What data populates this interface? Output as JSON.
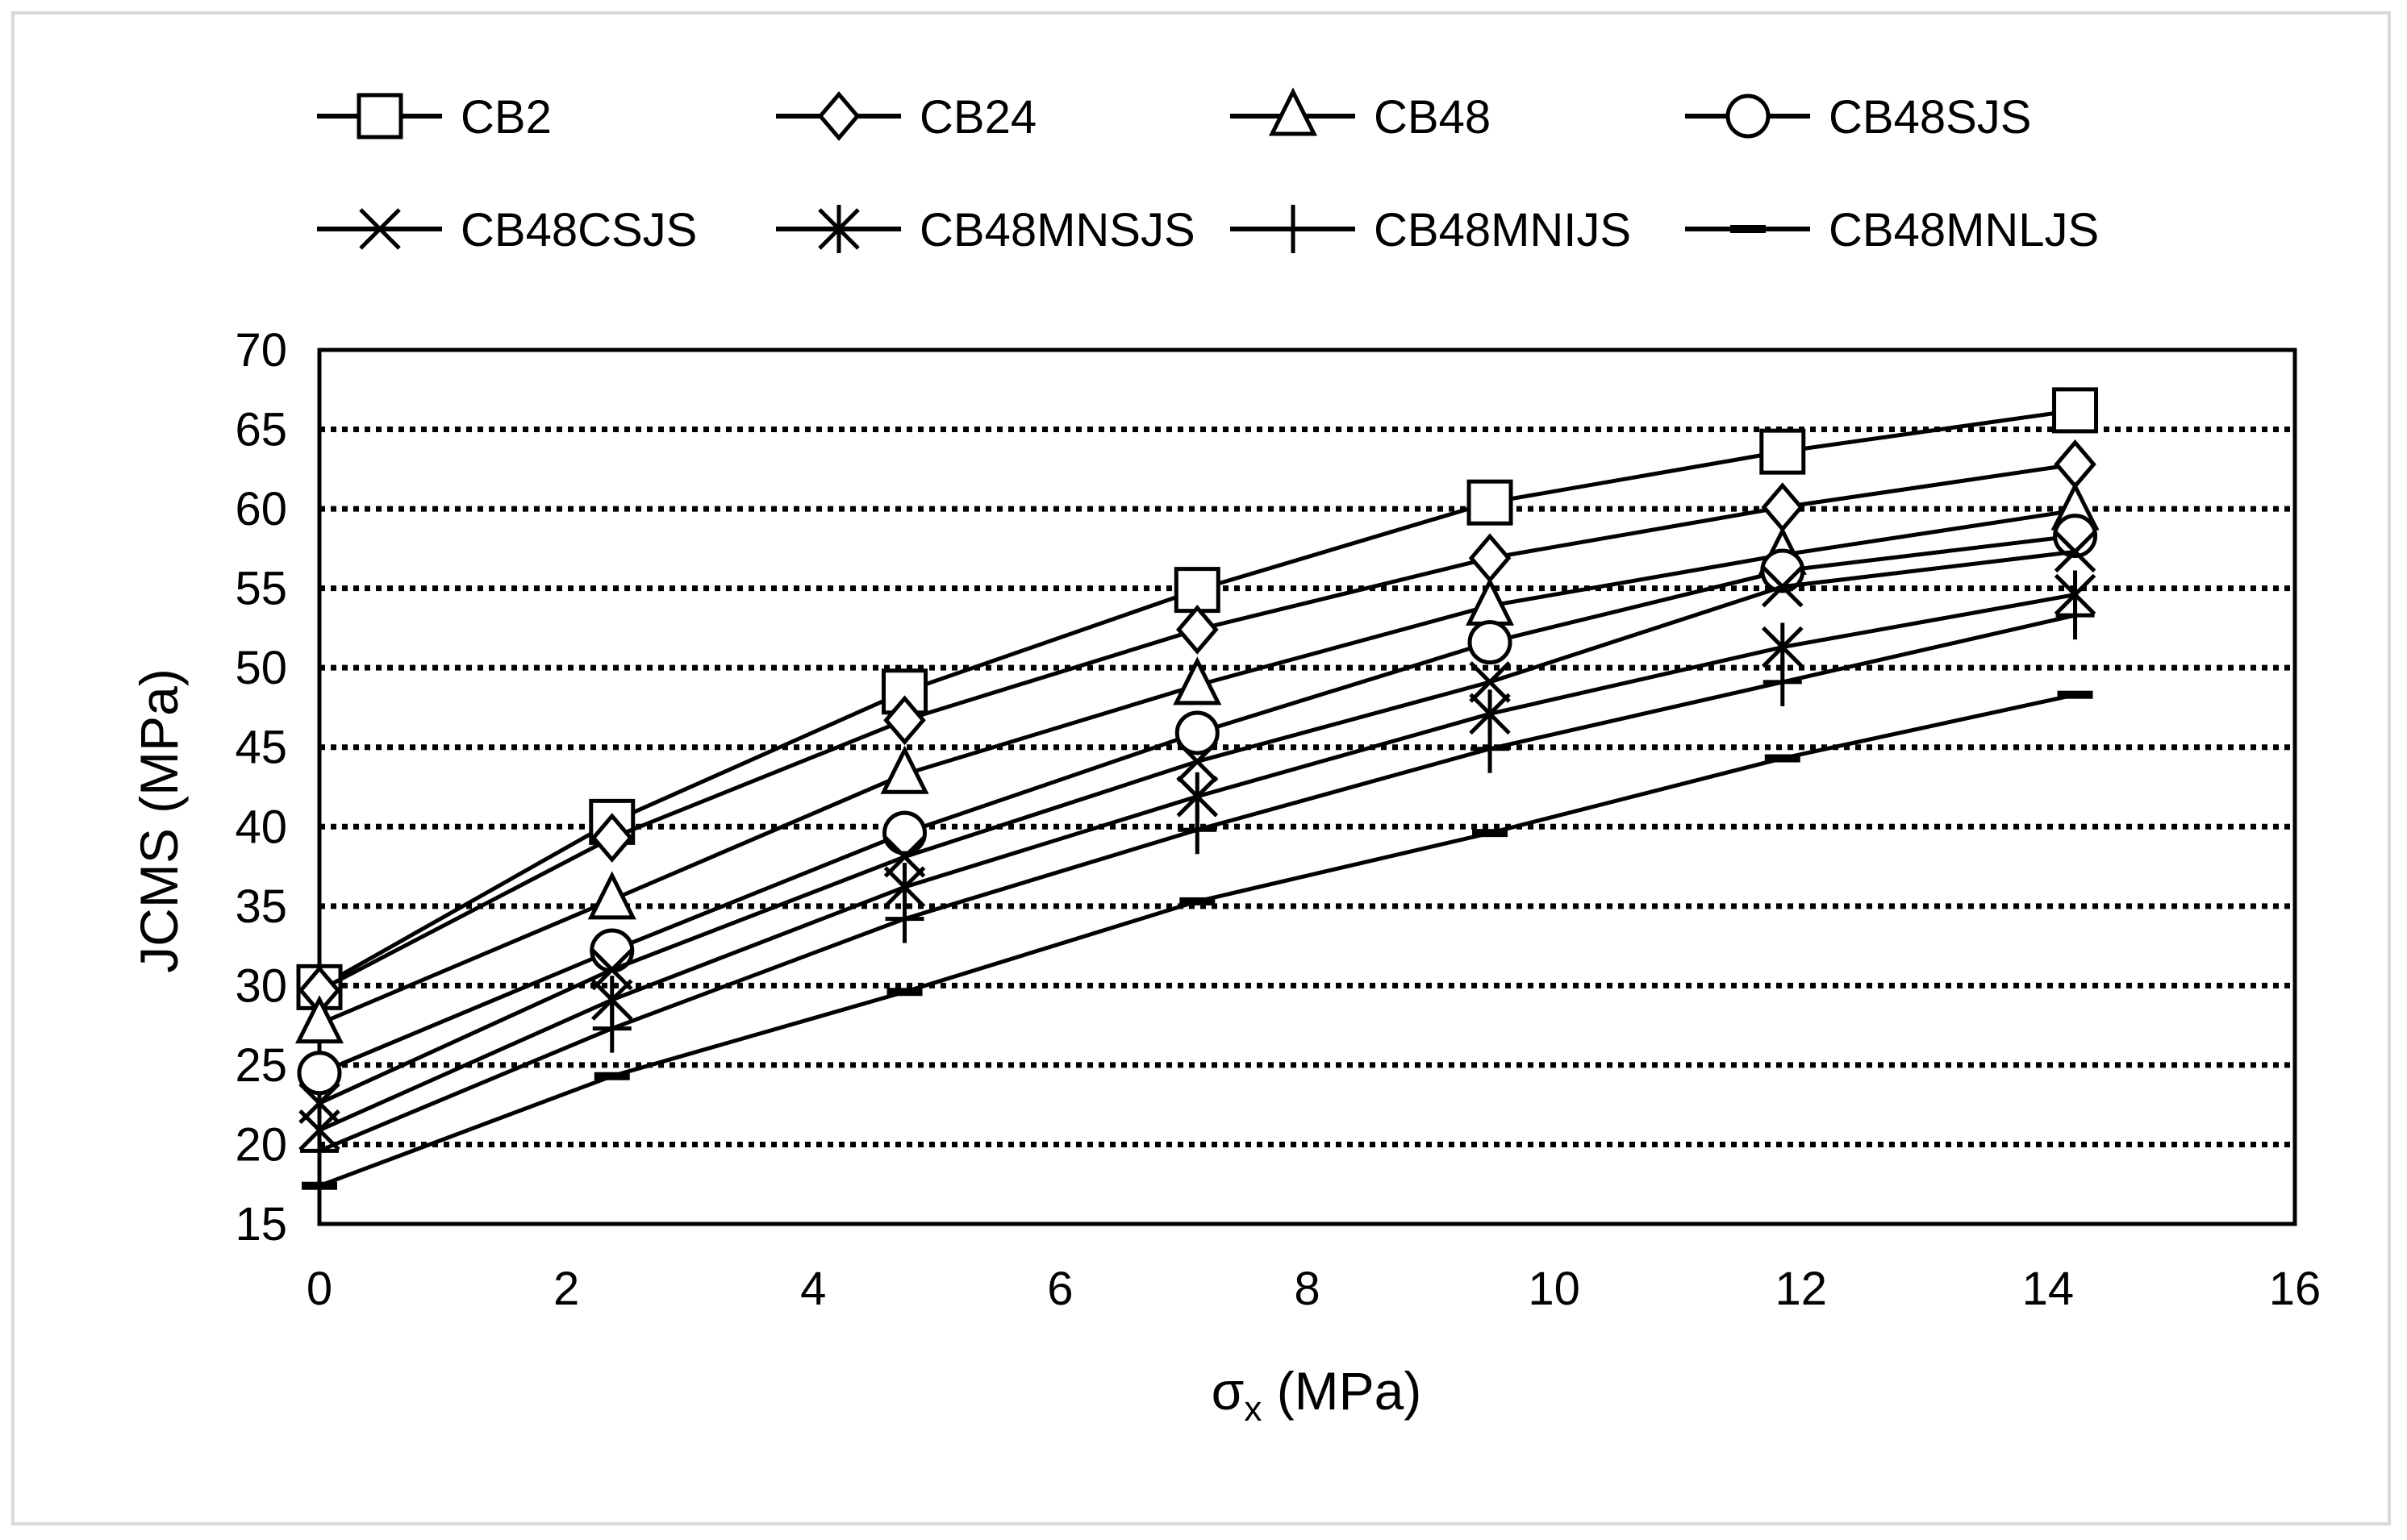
{
  "chart_data": {
    "type": "line",
    "title": "",
    "xlabel": "σ",
    "xlabel_subscript": "x",
    "xlabel_unit": " (MPa)",
    "ylabel": "JCMS  (MPa)",
    "xlim": [
      0,
      16
    ],
    "ylim": [
      15,
      70
    ],
    "x_ticks": [
      0,
      2,
      4,
      6,
      8,
      10,
      12,
      14,
      16
    ],
    "y_ticks": [
      15,
      20,
      25,
      30,
      35,
      40,
      45,
      50,
      55,
      60,
      65,
      70
    ],
    "grid": "horizontal dotted",
    "legend_position": "top",
    "x": [
      0,
      2.37,
      4.74,
      7.11,
      9.48,
      11.85,
      14.22
    ],
    "series": [
      {
        "name": "CB2",
        "marker": "square",
        "values": [
          29.9,
          40.3,
          48.5,
          54.9,
          60.4,
          63.6,
          66.2
        ]
      },
      {
        "name": "CB24",
        "marker": "diamond",
        "values": [
          29.7,
          39.3,
          46.7,
          52.4,
          56.9,
          60.1,
          62.8
        ]
      },
      {
        "name": "CB48",
        "marker": "triangle",
        "values": [
          27.6,
          35.4,
          43.3,
          48.9,
          53.9,
          57.1,
          59.9
        ]
      },
      {
        "name": "CB48SJS",
        "marker": "circle",
        "values": [
          24.5,
          32.2,
          39.6,
          45.9,
          51.6,
          56.1,
          58.3
        ]
      },
      {
        "name": "CB48CSJS",
        "marker": "x",
        "values": [
          22.6,
          31.0,
          38.1,
          44.1,
          49.1,
          55.1,
          57.3
        ]
      },
      {
        "name": "CB48MNSJS",
        "marker": "asterisk",
        "values": [
          20.9,
          29.1,
          36.2,
          41.9,
          47.1,
          51.3,
          54.6
        ]
      },
      {
        "name": "CB48MNIJS",
        "marker": "plus",
        "values": [
          19.6,
          27.3,
          34.2,
          39.8,
          44.9,
          49.1,
          53.3
        ]
      },
      {
        "name": "CB48MNLJS",
        "marker": "dash",
        "values": [
          17.4,
          24.3,
          29.6,
          35.3,
          39.6,
          44.3,
          48.3
        ]
      }
    ],
    "line_color": "#000000",
    "grid_color": "#000000"
  }
}
